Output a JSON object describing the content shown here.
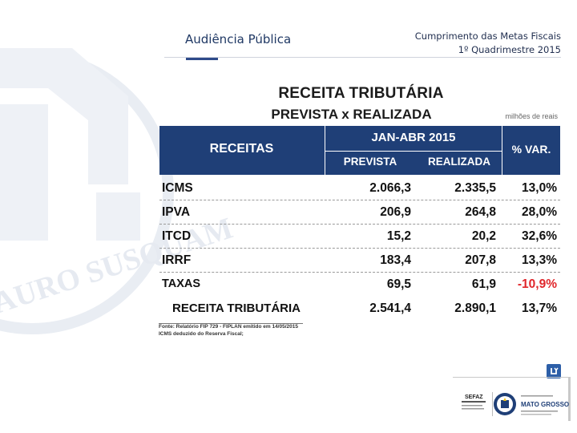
{
  "header": {
    "left_title": "Audiência Pública",
    "right_line1": "Cumprimento das Metas Fiscais",
    "right_line2": "1º Quadrimestre 2015"
  },
  "slide": {
    "title_line1": "RECEITA TRIBUTÁRIA",
    "title_line2": "PREVISTA x REALIZADA",
    "units": "milhões de reais",
    "columns": {
      "receitas": "RECEITAS",
      "period": "JAN-ABR 2015",
      "prevista": "PREVISTA",
      "realizada": "REALIZADA",
      "var": "% VAR."
    },
    "rows": [
      {
        "name": "ICMS",
        "prevista": "2.066,3",
        "realizada": "2.335,5",
        "var": "13,0%"
      },
      {
        "name": "IPVA",
        "prevista": "206,9",
        "realizada": "264,8",
        "var": "28,0%"
      },
      {
        "name": "ITCD",
        "prevista": "15,2",
        "realizada": "20,2",
        "var": "32,6%"
      },
      {
        "name": "IRRF",
        "prevista": "183,4",
        "realizada": "207,8",
        "var": "13,3%"
      },
      {
        "name": "TAXAS",
        "prevista": "69,5",
        "realizada": "61,9",
        "var": "-10,9%"
      }
    ],
    "total": {
      "name": "RECEITA TRIBUTÁRIA",
      "prevista": "2.541,4",
      "realizada": "2.890,1",
      "var": "13,7%"
    },
    "source_line1": "Fonte: Relatório FIP 729 - FIPLAN emitido em 14/05/2015",
    "source_line2": "ICMS deduzido do Reserva Fiscal;"
  },
  "watermark_text": "AURO   SUSQUAM",
  "footer": {
    "logo1_text": "SEFAZ",
    "logo2_text": "MATO GROSSO"
  },
  "colors": {
    "header_blue": "#1f3f77",
    "negative_red": "#e0262b",
    "title_navy": "#1f3864"
  }
}
